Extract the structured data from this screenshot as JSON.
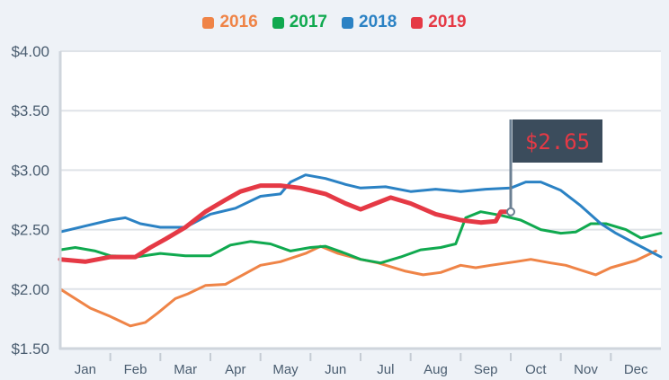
{
  "chart_data": {
    "type": "line",
    "title": "",
    "xlabel": "",
    "ylabel": "",
    "ylim": [
      1.5,
      4.0
    ],
    "xlim": [
      0,
      12
    ],
    "yticks": [
      "$1.50",
      "$2.00",
      "$2.50",
      "$3.00",
      "$3.50",
      "$4.00"
    ],
    "ytick_values": [
      1.5,
      2.0,
      2.5,
      3.0,
      3.5,
      4.0
    ],
    "xticks": [
      "Jan",
      "Feb",
      "Mar",
      "Apr",
      "May",
      "Jun",
      "Jul",
      "Aug",
      "Sep",
      "Oct",
      "Nov",
      "Dec"
    ],
    "grid": true,
    "legend_position": "top-center",
    "annotation": {
      "label": "$2.65",
      "series": "2019",
      "x": 9.0,
      "y": 2.65
    },
    "series": [
      {
        "name": "2016",
        "color": "#ef8447",
        "x": [
          0,
          0.6,
          1,
          1.4,
          1.7,
          1.95,
          2.3,
          2.55,
          2.9,
          3.3,
          3.65,
          4,
          4.4,
          4.9,
          5.2,
          5.55,
          6,
          6.35,
          6.9,
          7.25,
          7.6,
          8,
          8.3,
          8.6,
          9.1,
          9.4,
          9.8,
          10.1,
          10.7,
          11,
          11.5,
          11.9
        ],
        "y": [
          2.0,
          1.84,
          1.77,
          1.69,
          1.72,
          1.8,
          1.92,
          1.96,
          2.03,
          2.04,
          2.12,
          2.2,
          2.23,
          2.3,
          2.36,
          2.3,
          2.25,
          2.22,
          2.15,
          2.12,
          2.14,
          2.2,
          2.18,
          2.2,
          2.23,
          2.25,
          2.22,
          2.2,
          2.12,
          2.18,
          2.24,
          2.32
        ]
      },
      {
        "name": "2017",
        "color": "#10a94f",
        "x": [
          0,
          0.3,
          0.7,
          1,
          1.5,
          2,
          2.5,
          3,
          3.4,
          3.8,
          4.2,
          4.6,
          5,
          5.3,
          5.7,
          6,
          6.4,
          6.8,
          7.2,
          7.6,
          7.9,
          8.1,
          8.4,
          8.8,
          9.2,
          9.6,
          10,
          10.3,
          10.6,
          10.9,
          11.3,
          11.6,
          12
        ],
        "y": [
          2.33,
          2.35,
          2.32,
          2.28,
          2.27,
          2.3,
          2.28,
          2.28,
          2.37,
          2.4,
          2.38,
          2.32,
          2.35,
          2.36,
          2.3,
          2.25,
          2.22,
          2.27,
          2.33,
          2.35,
          2.38,
          2.6,
          2.65,
          2.62,
          2.58,
          2.5,
          2.47,
          2.48,
          2.55,
          2.55,
          2.5,
          2.43,
          2.47
        ]
      },
      {
        "name": "2018",
        "color": "#2b82c4",
        "x": [
          0,
          0.5,
          1,
          1.3,
          1.6,
          2,
          2.5,
          3,
          3.5,
          4,
          4.4,
          4.6,
          4.9,
          5.3,
          5.7,
          6,
          6.5,
          7,
          7.5,
          8,
          8.5,
          9,
          9.3,
          9.6,
          10,
          10.4,
          10.8,
          11.1,
          11.5,
          12
        ],
        "y": [
          2.48,
          2.53,
          2.58,
          2.6,
          2.55,
          2.52,
          2.52,
          2.63,
          2.68,
          2.78,
          2.8,
          2.9,
          2.96,
          2.93,
          2.88,
          2.85,
          2.86,
          2.82,
          2.84,
          2.82,
          2.84,
          2.85,
          2.9,
          2.9,
          2.83,
          2.7,
          2.55,
          2.47,
          2.38,
          2.27
        ]
      },
      {
        "name": "2019",
        "color": "#e53945",
        "x": [
          0,
          0.5,
          1,
          1.5,
          1.8,
          2.1,
          2.5,
          2.9,
          3.3,
          3.6,
          4,
          4.4,
          4.8,
          5.3,
          5.7,
          6,
          6.3,
          6.6,
          7,
          7.5,
          8,
          8.4,
          8.7,
          8.8,
          9
        ],
        "y": [
          2.25,
          2.23,
          2.27,
          2.27,
          2.35,
          2.42,
          2.52,
          2.65,
          2.75,
          2.82,
          2.87,
          2.87,
          2.85,
          2.8,
          2.72,
          2.67,
          2.72,
          2.77,
          2.72,
          2.63,
          2.58,
          2.56,
          2.57,
          2.65,
          2.65
        ]
      }
    ]
  }
}
